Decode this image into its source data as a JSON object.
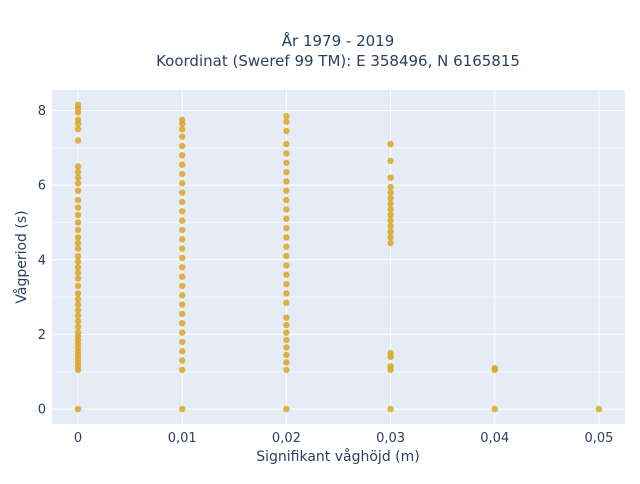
{
  "chart_data": {
    "type": "scatter",
    "title_line1": "År 1979 - 2019",
    "title_line2": "Koordinat (Sweref 99 TM): E 358496, N 6165815",
    "xlabel": "Signifikant våghöjd (m)",
    "ylabel": "Vågperiod (s)",
    "xlim": [
      -0.0025,
      0.0525
    ],
    "ylim": [
      -0.4,
      8.55
    ],
    "x_ticks": [
      {
        "value": 0,
        "label": "0"
      },
      {
        "value": 0.01,
        "label": "0,01"
      },
      {
        "value": 0.02,
        "label": "0,02"
      },
      {
        "value": 0.03,
        "label": "0,03"
      },
      {
        "value": 0.04,
        "label": "0,04"
      },
      {
        "value": 0.05,
        "label": "0,05"
      }
    ],
    "y_ticks": [
      {
        "value": 0,
        "label": "0"
      },
      {
        "value": 2,
        "label": "2"
      },
      {
        "value": 4,
        "label": "4"
      },
      {
        "value": 6,
        "label": "6"
      },
      {
        "value": 8,
        "label": "8"
      }
    ],
    "grid": true,
    "legend": "none",
    "marker_color": "#DAA520",
    "plot_bg": "#E5ECF6",
    "series": [
      {
        "points": [
          {
            "x": 0,
            "y": 0
          },
          {
            "x": 0,
            "y": 1.05
          },
          {
            "x": 0,
            "y": 1.15
          },
          {
            "x": 0,
            "y": 1.25
          },
          {
            "x": 0,
            "y": 1.35
          },
          {
            "x": 0,
            "y": 1.45
          },
          {
            "x": 0,
            "y": 1.55
          },
          {
            "x": 0,
            "y": 1.65
          },
          {
            "x": 0,
            "y": 1.75
          },
          {
            "x": 0,
            "y": 1.85
          },
          {
            "x": 0,
            "y": 1.95
          },
          {
            "x": 0,
            "y": 2.05
          },
          {
            "x": 0,
            "y": 2.2
          },
          {
            "x": 0,
            "y": 2.35
          },
          {
            "x": 0,
            "y": 2.5
          },
          {
            "x": 0,
            "y": 2.65
          },
          {
            "x": 0,
            "y": 2.8
          },
          {
            "x": 0,
            "y": 2.95
          },
          {
            "x": 0,
            "y": 3.1
          },
          {
            "x": 0,
            "y": 3.3
          },
          {
            "x": 0,
            "y": 3.5
          },
          {
            "x": 0,
            "y": 3.65
          },
          {
            "x": 0,
            "y": 3.8
          },
          {
            "x": 0,
            "y": 3.95
          },
          {
            "x": 0,
            "y": 4.1
          },
          {
            "x": 0,
            "y": 4.3
          },
          {
            "x": 0,
            "y": 4.45
          },
          {
            "x": 0,
            "y": 4.6
          },
          {
            "x": 0,
            "y": 4.8
          },
          {
            "x": 0,
            "y": 5.0
          },
          {
            "x": 0,
            "y": 5.2
          },
          {
            "x": 0,
            "y": 5.4
          },
          {
            "x": 0,
            "y": 5.6
          },
          {
            "x": 0,
            "y": 5.85
          },
          {
            "x": 0,
            "y": 6.05
          },
          {
            "x": 0,
            "y": 6.2
          },
          {
            "x": 0,
            "y": 6.35
          },
          {
            "x": 0,
            "y": 6.5
          },
          {
            "x": 0,
            "y": 7.2
          },
          {
            "x": 0,
            "y": 7.5
          },
          {
            "x": 0,
            "y": 7.65
          },
          {
            "x": 0,
            "y": 7.75
          },
          {
            "x": 0,
            "y": 7.95
          },
          {
            "x": 0,
            "y": 8.05
          },
          {
            "x": 0,
            "y": 8.15
          },
          {
            "x": 0.01,
            "y": 0
          },
          {
            "x": 0.01,
            "y": 1.05
          },
          {
            "x": 0.01,
            "y": 1.3
          },
          {
            "x": 0.01,
            "y": 1.55
          },
          {
            "x": 0.01,
            "y": 1.8
          },
          {
            "x": 0.01,
            "y": 2.05
          },
          {
            "x": 0.01,
            "y": 2.3
          },
          {
            "x": 0.01,
            "y": 2.55
          },
          {
            "x": 0.01,
            "y": 2.8
          },
          {
            "x": 0.01,
            "y": 3.05
          },
          {
            "x": 0.01,
            "y": 3.3
          },
          {
            "x": 0.01,
            "y": 3.55
          },
          {
            "x": 0.01,
            "y": 3.8
          },
          {
            "x": 0.01,
            "y": 4.05
          },
          {
            "x": 0.01,
            "y": 4.3
          },
          {
            "x": 0.01,
            "y": 4.55
          },
          {
            "x": 0.01,
            "y": 4.8
          },
          {
            "x": 0.01,
            "y": 5.05
          },
          {
            "x": 0.01,
            "y": 5.3
          },
          {
            "x": 0.01,
            "y": 5.55
          },
          {
            "x": 0.01,
            "y": 5.8
          },
          {
            "x": 0.01,
            "y": 6.05
          },
          {
            "x": 0.01,
            "y": 6.3
          },
          {
            "x": 0.01,
            "y": 6.55
          },
          {
            "x": 0.01,
            "y": 6.8
          },
          {
            "x": 0.01,
            "y": 7.05
          },
          {
            "x": 0.01,
            "y": 7.3
          },
          {
            "x": 0.01,
            "y": 7.5
          },
          {
            "x": 0.01,
            "y": 7.65
          },
          {
            "x": 0.01,
            "y": 7.75
          },
          {
            "x": 0.02,
            "y": 0
          },
          {
            "x": 0.02,
            "y": 1.05
          },
          {
            "x": 0.02,
            "y": 1.25
          },
          {
            "x": 0.02,
            "y": 1.45
          },
          {
            "x": 0.02,
            "y": 1.65
          },
          {
            "x": 0.02,
            "y": 1.85
          },
          {
            "x": 0.02,
            "y": 2.05
          },
          {
            "x": 0.02,
            "y": 2.25
          },
          {
            "x": 0.02,
            "y": 2.45
          },
          {
            "x": 0.02,
            "y": 2.85
          },
          {
            "x": 0.02,
            "y": 3.1
          },
          {
            "x": 0.02,
            "y": 3.35
          },
          {
            "x": 0.02,
            "y": 3.6
          },
          {
            "x": 0.02,
            "y": 3.85
          },
          {
            "x": 0.02,
            "y": 4.1
          },
          {
            "x": 0.02,
            "y": 4.35
          },
          {
            "x": 0.02,
            "y": 4.6
          },
          {
            "x": 0.02,
            "y": 4.85
          },
          {
            "x": 0.02,
            "y": 5.1
          },
          {
            "x": 0.02,
            "y": 5.35
          },
          {
            "x": 0.02,
            "y": 5.6
          },
          {
            "x": 0.02,
            "y": 5.85
          },
          {
            "x": 0.02,
            "y": 6.1
          },
          {
            "x": 0.02,
            "y": 6.35
          },
          {
            "x": 0.02,
            "y": 6.6
          },
          {
            "x": 0.02,
            "y": 6.85
          },
          {
            "x": 0.02,
            "y": 7.1
          },
          {
            "x": 0.02,
            "y": 7.45
          },
          {
            "x": 0.02,
            "y": 7.7
          },
          {
            "x": 0.02,
            "y": 7.85
          },
          {
            "x": 0.03,
            "y": 0
          },
          {
            "x": 0.03,
            "y": 1.05
          },
          {
            "x": 0.03,
            "y": 1.15
          },
          {
            "x": 0.03,
            "y": 1.4
          },
          {
            "x": 0.03,
            "y": 1.5
          },
          {
            "x": 0.03,
            "y": 4.45
          },
          {
            "x": 0.03,
            "y": 4.6
          },
          {
            "x": 0.03,
            "y": 4.75
          },
          {
            "x": 0.03,
            "y": 4.9
          },
          {
            "x": 0.03,
            "y": 5.05
          },
          {
            "x": 0.03,
            "y": 5.2
          },
          {
            "x": 0.03,
            "y": 5.35
          },
          {
            "x": 0.03,
            "y": 5.5
          },
          {
            "x": 0.03,
            "y": 5.65
          },
          {
            "x": 0.03,
            "y": 5.8
          },
          {
            "x": 0.03,
            "y": 5.95
          },
          {
            "x": 0.03,
            "y": 6.2
          },
          {
            "x": 0.03,
            "y": 6.65
          },
          {
            "x": 0.03,
            "y": 7.1
          },
          {
            "x": 0.04,
            "y": 0
          },
          {
            "x": 0.04,
            "y": 1.05
          },
          {
            "x": 0.04,
            "y": 1.1
          },
          {
            "x": 0.05,
            "y": 0
          }
        ]
      }
    ]
  }
}
